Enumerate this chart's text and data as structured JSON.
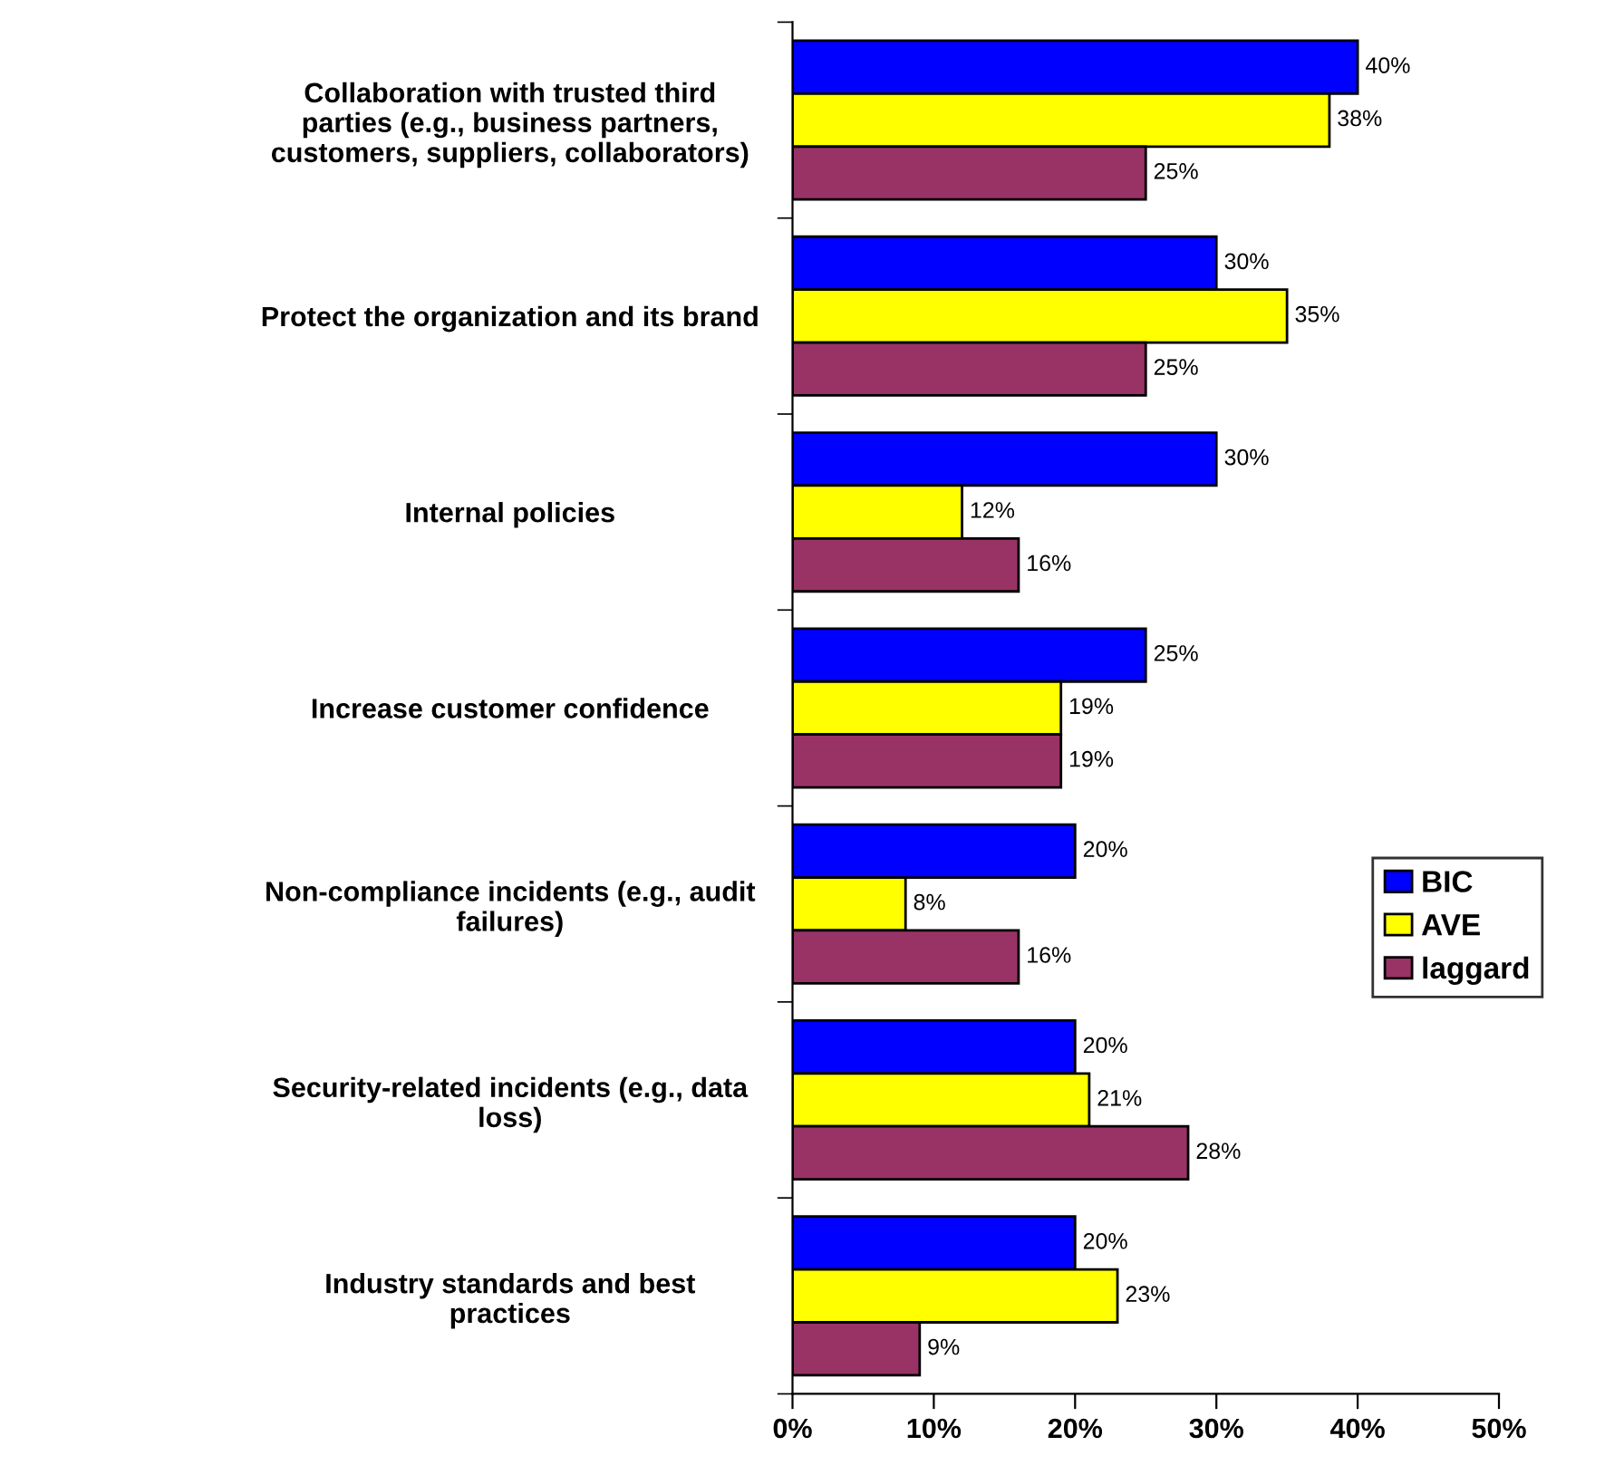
{
  "chart_data": {
    "type": "bar",
    "orientation": "horizontal",
    "categories": [
      "Collaboration with trusted third\nparties (e.g., business partners,\ncustomers, suppliers, collaborators)",
      "Protect the organization and its brand",
      "Internal policies",
      "Increase customer confidence",
      "Non-compliance incidents (e.g., audit\nfailures)",
      "Security-related incidents (e.g., data\nloss)",
      "Industry standards and best\npractices"
    ],
    "series": [
      {
        "name": "BIC",
        "color": "#0000ff",
        "values": [
          40,
          30,
          30,
          25,
          20,
          20,
          20
        ],
        "value_labels": [
          "40%",
          "30%",
          "30%",
          "25%",
          "20%",
          "20%",
          "20%"
        ]
      },
      {
        "name": "AVE",
        "color": "#ffff00",
        "values": [
          38,
          35,
          12,
          19,
          8,
          21,
          23
        ],
        "value_labels": [
          "38%",
          "35%",
          "12%",
          "19%",
          "8%",
          "21%",
          "23%"
        ]
      },
      {
        "name": "laggard",
        "color": "#993366",
        "values": [
          25,
          25,
          16,
          19,
          16,
          28,
          9
        ],
        "value_labels": [
          "25%",
          "25%",
          "16%",
          "19%",
          "16%",
          "28%",
          "9%"
        ]
      }
    ],
    "xlim": [
      0,
      50
    ],
    "xticks": [
      {
        "value": 0,
        "label": "0%"
      },
      {
        "value": 10,
        "label": "10%"
      },
      {
        "value": 20,
        "label": "20%"
      },
      {
        "value": 30,
        "label": "30%"
      },
      {
        "value": 40,
        "label": "40%"
      },
      {
        "value": 50,
        "label": "50%"
      }
    ],
    "legend": "right",
    "grid": false
  }
}
